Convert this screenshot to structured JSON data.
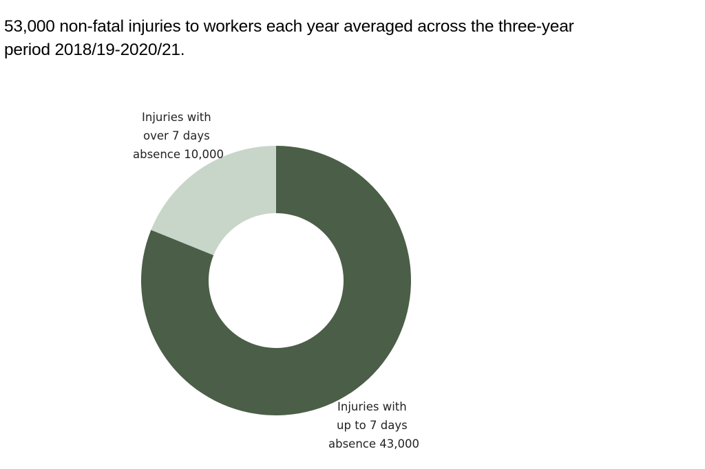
{
  "heading": {
    "line1": "53,000 non-fatal injuries to workers each year averaged across the three-year",
    "line2": "period 2018/19-2020/21."
  },
  "chart_data": {
    "type": "pie",
    "variant": "donut",
    "title": "",
    "slices": [
      {
        "label_lines": [
          "Injuries with",
          "up to 7 days",
          "absence 43,000"
        ],
        "value": 43000,
        "color": "#4b5e47"
      },
      {
        "label_lines": [
          "Injuries with",
          "over 7 days",
          "absence 10,000"
        ],
        "value": 10000,
        "color": "#c8d6c9"
      }
    ],
    "legend": "none"
  }
}
